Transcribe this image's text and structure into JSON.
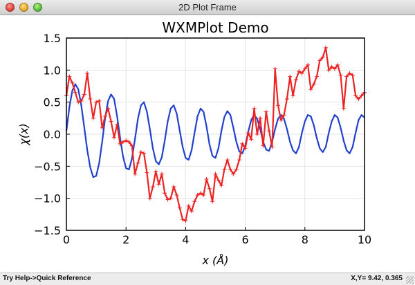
{
  "window": {
    "title": "2D Plot Frame"
  },
  "status": {
    "help": "Try Help->Quick Reference",
    "coords_label": "X,Y=",
    "coords_value": "9.42, 0.365"
  },
  "chart_data": {
    "type": "line",
    "title": "WXMPlot Demo",
    "xlabel": "x (Å)",
    "ylabel": "χ(x)",
    "xlim": [
      0,
      10
    ],
    "ylim": [
      -1.5,
      1.5
    ],
    "xticks": [
      0,
      2,
      4,
      6,
      8,
      10
    ],
    "yticks": [
      -1.5,
      -1.0,
      -0.5,
      0.0,
      0.5,
      1.0,
      1.5
    ],
    "xtick_labels": [
      "0",
      "2",
      "4",
      "6",
      "8",
      "10"
    ],
    "ytick_labels": [
      "−1.5",
      "−1.0",
      "−0.5",
      "0.0",
      "0.5",
      "1.0",
      "1.5"
    ],
    "grid": true,
    "series": [
      {
        "color": "#2040d0",
        "marker": "none",
        "x": [
          0.0,
          0.1,
          0.2,
          0.3,
          0.4,
          0.5,
          0.6,
          0.7,
          0.8,
          0.9,
          1.0,
          1.1,
          1.2,
          1.3,
          1.4,
          1.5,
          1.6,
          1.7,
          1.8,
          1.9,
          2.0,
          2.1,
          2.2,
          2.3,
          2.4,
          2.5,
          2.6,
          2.7,
          2.8,
          2.9,
          3.0,
          3.1,
          3.2,
          3.3,
          3.4,
          3.5,
          3.6,
          3.7,
          3.8,
          3.9,
          4.0,
          4.1,
          4.2,
          4.3,
          4.4,
          4.5,
          4.6,
          4.7,
          4.8,
          4.9,
          5.0,
          5.1,
          5.2,
          5.3,
          5.4,
          5.5,
          5.6,
          5.7,
          5.8,
          5.9,
          6.0,
          6.1,
          6.2,
          6.3,
          6.4,
          6.5,
          6.6,
          6.7,
          6.8,
          6.9,
          7.0,
          7.1,
          7.2,
          7.3,
          7.4,
          7.5,
          7.6,
          7.7,
          7.8,
          7.9,
          8.0,
          8.1,
          8.2,
          8.3,
          8.4,
          8.5,
          8.6,
          8.7,
          8.8,
          8.9,
          9.0,
          9.1,
          9.2,
          9.3,
          9.4,
          9.5,
          9.6,
          9.7,
          9.8,
          9.9,
          10.0
        ],
        "y": [
          0.05,
          0.42,
          0.68,
          0.78,
          0.7,
          0.45,
          0.1,
          -0.25,
          -0.52,
          -0.67,
          -0.65,
          -0.45,
          -0.12,
          0.25,
          0.52,
          0.62,
          0.55,
          0.28,
          -0.05,
          -0.35,
          -0.53,
          -0.55,
          -0.38,
          -0.08,
          0.24,
          0.45,
          0.5,
          0.35,
          0.08,
          -0.22,
          -0.42,
          -0.47,
          -0.36,
          -0.1,
          0.2,
          0.4,
          0.45,
          0.32,
          0.06,
          -0.2,
          -0.37,
          -0.4,
          -0.25,
          0.02,
          0.28,
          0.4,
          0.35,
          0.12,
          -0.16,
          -0.34,
          -0.37,
          -0.22,
          0.05,
          0.27,
          0.36,
          0.3,
          0.1,
          -0.12,
          -0.27,
          -0.3,
          -0.18,
          0.04,
          0.22,
          0.3,
          0.24,
          0.08,
          -0.12,
          -0.24,
          -0.26,
          -0.12,
          0.08,
          0.24,
          0.3,
          0.24,
          0.08,
          -0.12,
          -0.25,
          -0.3,
          -0.2,
          0.02,
          0.2,
          0.3,
          0.28,
          0.14,
          -0.06,
          -0.22,
          -0.28,
          -0.2,
          0.02,
          0.2,
          0.3,
          0.26,
          0.1,
          -0.1,
          -0.25,
          -0.3,
          -0.2,
          0.02,
          0.22,
          0.3,
          0.26
        ]
      },
      {
        "color": "#ee2222",
        "marker": "+",
        "x": [
          0.0,
          0.1,
          0.2,
          0.3,
          0.4,
          0.5,
          0.6,
          0.7,
          0.8,
          0.9,
          1.0,
          1.1,
          1.2,
          1.3,
          1.4,
          1.5,
          1.6,
          1.7,
          1.8,
          1.9,
          2.0,
          2.1,
          2.2,
          2.3,
          2.4,
          2.5,
          2.6,
          2.7,
          2.8,
          2.9,
          3.0,
          3.1,
          3.2,
          3.3,
          3.4,
          3.5,
          3.6,
          3.7,
          3.8,
          3.9,
          4.0,
          4.1,
          4.2,
          4.3,
          4.4,
          4.5,
          4.6,
          4.7,
          4.8,
          4.9,
          5.0,
          5.1,
          5.2,
          5.3,
          5.4,
          5.5,
          5.6,
          5.7,
          5.8,
          5.9,
          6.0,
          6.1,
          6.2,
          6.3,
          6.4,
          6.5,
          6.6,
          6.7,
          6.8,
          6.9,
          7.0,
          7.1,
          7.2,
          7.3,
          7.4,
          7.5,
          7.6,
          7.7,
          7.8,
          7.9,
          8.0,
          8.1,
          8.2,
          8.3,
          8.4,
          8.5,
          8.6,
          8.7,
          8.8,
          8.9,
          9.0,
          9.1,
          9.2,
          9.3,
          9.4,
          9.5,
          9.6,
          9.7,
          9.8,
          9.9,
          10.0
        ],
        "y": [
          0.6,
          0.9,
          0.8,
          0.65,
          0.5,
          0.52,
          0.62,
          0.95,
          0.55,
          0.25,
          0.5,
          0.52,
          0.1,
          0.28,
          0.4,
          0.2,
          -0.05,
          0.15,
          -0.15,
          -0.12,
          -0.1,
          -0.12,
          -0.18,
          -0.62,
          -0.45,
          -0.28,
          -0.3,
          -0.6,
          -1.0,
          -0.82,
          -0.58,
          -0.78,
          -0.62,
          -0.92,
          -1.02,
          -1.0,
          -0.82,
          -0.95,
          -1.15,
          -1.33,
          -1.35,
          -1.12,
          -1.2,
          -1.05,
          -0.95,
          -0.92,
          -0.95,
          -0.7,
          -0.85,
          -1.05,
          -0.62,
          -0.72,
          -0.8,
          -0.55,
          -0.4,
          -0.55,
          -0.62,
          -0.55,
          -0.4,
          -0.15,
          -0.22,
          0.02,
          -0.08,
          0.4,
          0.0,
          0.25,
          -0.18,
          0.35,
          0.05,
          -0.2,
          1.02,
          0.45,
          0.22,
          0.3,
          0.55,
          0.9,
          0.6,
          0.85,
          0.98,
          0.95,
          1.02,
          1.08,
          0.7,
          0.78,
          0.9,
          1.15,
          1.2,
          1.35,
          1.0,
          1.05,
          1.02,
          1.08,
          0.92,
          0.4,
          0.9,
          0.95,
          0.92,
          0.6,
          0.55,
          0.6,
          0.65
        ]
      }
    ]
  }
}
